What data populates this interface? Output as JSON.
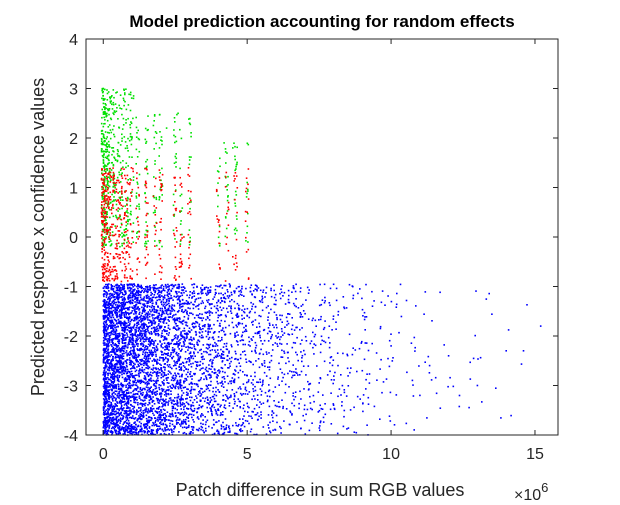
{
  "chart_data": {
    "type": "scatter",
    "title": "Model prediction accounting for random effects",
    "xlabel": "Patch difference in sum RGB values",
    "ylabel": "Predicted response x confidence values",
    "x_exponent_label": "×10",
    "x_exponent_power": "6",
    "xlim": [
      -0.6,
      15.8
    ],
    "ylim": [
      -4,
      4
    ],
    "x_ticks": [
      0,
      5,
      10,
      15
    ],
    "x_tick_labels": [
      "0",
      "5",
      "10",
      "15"
    ],
    "y_ticks": [
      -4,
      -3,
      -2,
      -1,
      0,
      1,
      2,
      3,
      4
    ],
    "y_tick_labels": [
      "-4",
      "-3",
      "-2",
      "-1",
      "0",
      "1",
      "2",
      "3",
      "4"
    ],
    "grid": false,
    "legend": "none",
    "x_units": "millions of sum RGB values (×10^6)",
    "series": [
      {
        "color": "#0000ff",
        "description_stats": {
          "x_range": [
            0,
            15.2
          ],
          "y_range": [
            -4.0,
            -0.9
          ],
          "density": "high near x=0-5, sparse beyond 10"
        },
        "points_sample": [
          [
            0.1,
            -3.8
          ],
          [
            0.5,
            -2.2
          ],
          [
            1.0,
            -1.1
          ],
          [
            2.0,
            -3.0
          ],
          [
            3.0,
            -2.5
          ],
          [
            4.0,
            -1.3
          ],
          [
            5.0,
            -2.8
          ],
          [
            6.0,
            -2.0
          ],
          [
            7.0,
            -3.4
          ],
          [
            8.0,
            -1.6
          ],
          [
            9.0,
            -2.7
          ],
          [
            10.0,
            -2.2
          ],
          [
            11.0,
            -3.2
          ],
          [
            12.0,
            -2.4
          ],
          [
            13.0,
            -3.0
          ],
          [
            14.0,
            -2.3
          ],
          [
            14.6,
            -2.3
          ],
          [
            15.2,
            -1.8
          ]
        ]
      },
      {
        "color": "#ff0000",
        "description_stats": {
          "x_range": [
            0,
            5
          ],
          "y_range": [
            -0.9,
            1.5
          ]
        },
        "points_sample": [
          [
            0.1,
            -0.7
          ],
          [
            0.3,
            0.2
          ],
          [
            0.6,
            0.8
          ],
          [
            0.8,
            -0.3
          ],
          [
            1.2,
            0.4
          ],
          [
            1.5,
            1.0
          ],
          [
            2.0,
            0.3
          ],
          [
            2.5,
            -0.2
          ],
          [
            2.8,
            0.0
          ],
          [
            3.0,
            0.7
          ],
          [
            4.0,
            0.3
          ],
          [
            4.5,
            -0.4
          ],
          [
            5.0,
            0.5
          ]
        ]
      },
      {
        "color": "#00e000",
        "description_stats": {
          "x_range": [
            0,
            5
          ],
          "y_range": [
            -0.2,
            3.1
          ]
        },
        "points_sample": [
          [
            0.0,
            3.0
          ],
          [
            0.1,
            2.6
          ],
          [
            0.3,
            1.8
          ],
          [
            0.5,
            1.2
          ],
          [
            0.7,
            2.8
          ],
          [
            1.0,
            2.0
          ],
          [
            1.5,
            1.4
          ],
          [
            1.8,
            0.5
          ],
          [
            2.2,
            2.2
          ],
          [
            2.6,
            2.5
          ],
          [
            3.0,
            2.3
          ],
          [
            4.2,
            1.9
          ],
          [
            4.5,
            1.8
          ],
          [
            5.0,
            1.1
          ]
        ]
      }
    ]
  }
}
